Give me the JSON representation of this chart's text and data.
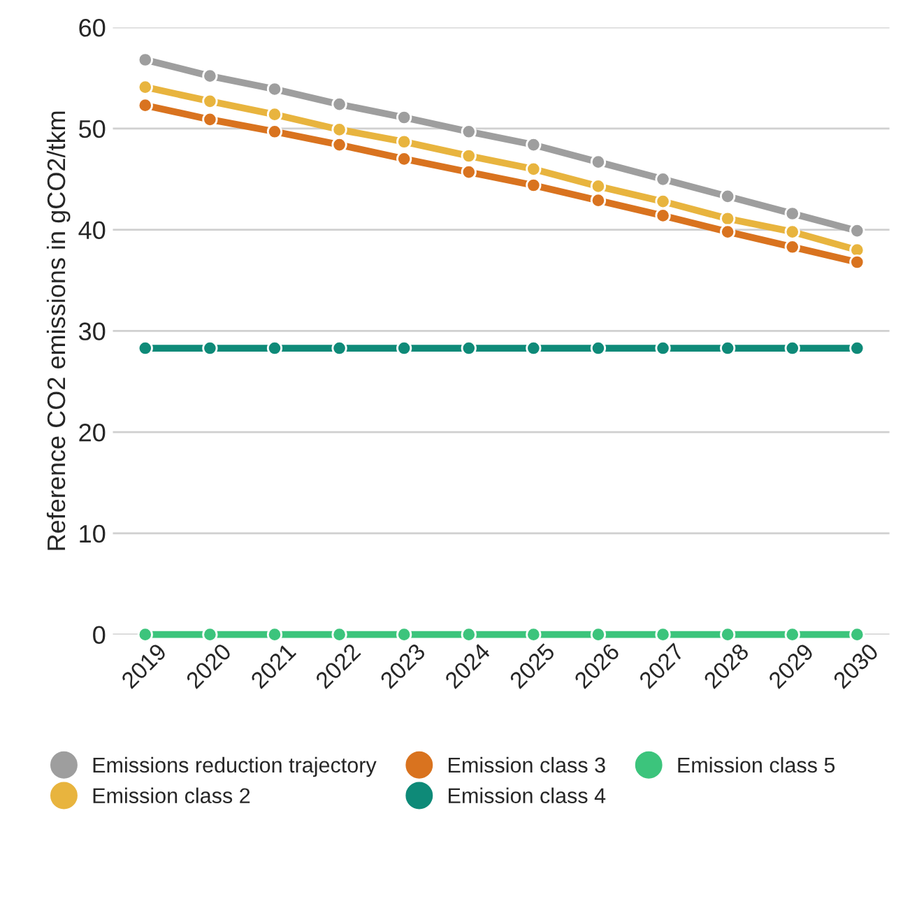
{
  "chart_data": {
    "type": "line",
    "ylabel": "Reference CO2 emissions in gCO2/tkm",
    "categories": [
      "2019",
      "2020",
      "2021",
      "2022",
      "2023",
      "2024",
      "2025",
      "2026",
      "2027",
      "2028",
      "2029",
      "2030"
    ],
    "series": [
      {
        "name": "Emissions reduction trajectory",
        "color": "#9e9e9e",
        "values": [
          56.8,
          55.2,
          53.9,
          52.4,
          51.1,
          49.7,
          48.4,
          46.7,
          45.0,
          43.3,
          41.6,
          39.9
        ]
      },
      {
        "name": "Emission class 2",
        "color": "#e8b43e",
        "values": [
          54.1,
          52.7,
          51.4,
          49.9,
          48.7,
          47.3,
          46.0,
          44.3,
          42.8,
          41.1,
          39.8,
          38.0
        ]
      },
      {
        "name": "Emission class 3",
        "color": "#d9731f",
        "values": [
          52.3,
          50.9,
          49.7,
          48.4,
          47.0,
          45.7,
          44.4,
          42.9,
          41.4,
          39.8,
          38.3,
          36.8
        ]
      },
      {
        "name": "Emission class 4",
        "color": "#0e8a78",
        "values": [
          28.3,
          28.3,
          28.3,
          28.3,
          28.3,
          28.3,
          28.3,
          28.3,
          28.3,
          28.3,
          28.3,
          28.3
        ]
      },
      {
        "name": "Emission class 5",
        "color": "#3cc47c",
        "values": [
          0,
          0,
          0,
          0,
          0,
          0,
          0,
          0,
          0,
          0,
          0,
          0
        ]
      }
    ],
    "ylim": [
      0,
      60
    ],
    "yticks": [
      0,
      10,
      20,
      30,
      40,
      50,
      60
    ],
    "grid": "y",
    "legend": "bottom",
    "marker": "circle",
    "line_style": "solid"
  }
}
